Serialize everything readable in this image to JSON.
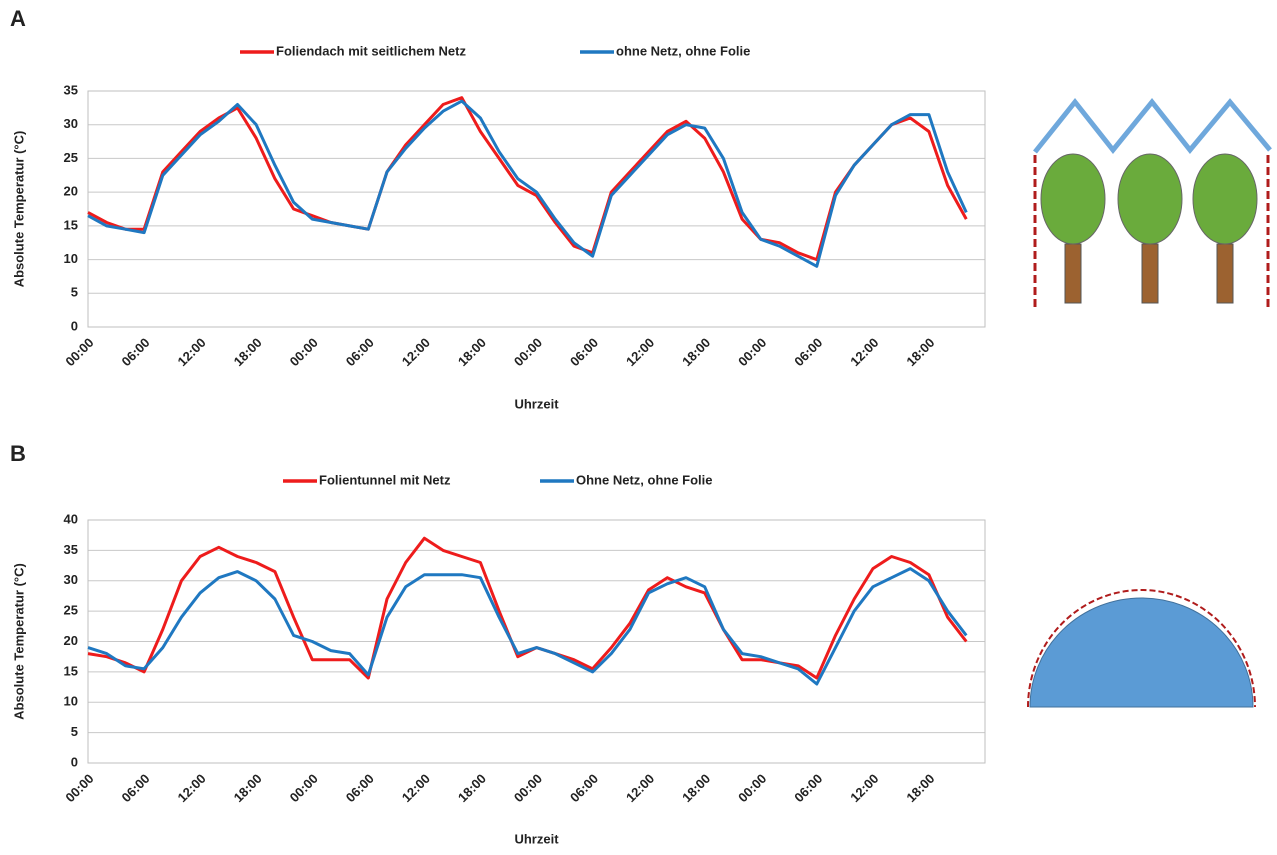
{
  "chart_data": [
    {
      "type": "line",
      "panel_label": "A",
      "y_label": "Absolute Temperatur (°C)",
      "x_label": "Uhrzeit",
      "categories": [
        "00:00",
        null,
        null,
        "06:00",
        null,
        null,
        "12:00",
        null,
        null,
        "18:00",
        null,
        null,
        "00:00",
        null,
        null,
        "06:00",
        null,
        null,
        "12:00",
        null,
        null,
        "18:00",
        null,
        null,
        "00:00",
        null,
        null,
        "06:00",
        null,
        null,
        "12:00",
        null,
        null,
        "18:00",
        null,
        null,
        "00:00",
        null,
        null,
        "06:00",
        null,
        null,
        "12:00",
        null,
        null,
        "18:00",
        null,
        null
      ],
      "series": [
        {
          "name": "Foliendach mit seitlichem Netz",
          "color": "#ee1c1c",
          "values": [
            17,
            15.5,
            14.5,
            14.5,
            23,
            26,
            29,
            31,
            32.5,
            28,
            22,
            17.5,
            16.5,
            15.5,
            15,
            14.5,
            23,
            27,
            30,
            33,
            34,
            29,
            25,
            21,
            19.5,
            15.5,
            12,
            11,
            20,
            23,
            26,
            29,
            30.5,
            28,
            23,
            16,
            13,
            12.5,
            11,
            10,
            20,
            24,
            27,
            30,
            31,
            29,
            21,
            16
          ]
        },
        {
          "name": "ohne Netz, ohne Folie",
          "color": "#1f78c1",
          "values": [
            16.5,
            15,
            14.5,
            14,
            22.5,
            25.5,
            28.5,
            30.5,
            33,
            30,
            24,
            18.5,
            16,
            15.5,
            15,
            14.5,
            23,
            26.5,
            29.5,
            32,
            33.5,
            31,
            26,
            22,
            20,
            16,
            12.5,
            10.5,
            19.5,
            22.5,
            25.5,
            28.5,
            30,
            29.5,
            25,
            17,
            13,
            12,
            10.5,
            9,
            19.5,
            24,
            27,
            30,
            31.5,
            31.5,
            23,
            17
          ]
        }
      ],
      "ylim": [
        0,
        35
      ],
      "yticks": [
        0,
        5,
        10,
        15,
        20,
        25,
        30,
        35
      ],
      "grid": true
    },
    {
      "type": "line",
      "panel_label": "B",
      "y_label": "Absolute Temperatur (°C)",
      "x_label": "Uhrzeit",
      "categories": [
        "00:00",
        null,
        null,
        "06:00",
        null,
        null,
        "12:00",
        null,
        null,
        "18:00",
        null,
        null,
        "00:00",
        null,
        null,
        "06:00",
        null,
        null,
        "12:00",
        null,
        null,
        "18:00",
        null,
        null,
        "00:00",
        null,
        null,
        "06:00",
        null,
        null,
        "12:00",
        null,
        null,
        "18:00",
        null,
        null,
        "00:00",
        null,
        null,
        "06:00",
        null,
        null,
        "12:00",
        null,
        null,
        "18:00",
        null,
        null
      ],
      "series": [
        {
          "name": "Folientunnel mit Netz",
          "color": "#ee1c1c",
          "values": [
            18,
            17.5,
            16.5,
            15,
            22,
            30,
            34,
            35.5,
            34,
            33,
            31.5,
            24,
            17,
            17,
            17,
            14,
            27,
            33,
            37,
            35,
            34,
            33,
            25,
            17.5,
            19,
            18,
            17,
            15.5,
            19,
            23,
            28.5,
            30.5,
            29,
            28,
            22,
            17,
            17,
            16.5,
            16,
            14,
            21,
            27,
            32,
            34,
            33,
            31,
            24,
            20
          ]
        },
        {
          "name": "Ohne Netz, ohne Folie",
          "color": "#1f78c1",
          "values": [
            19,
            18,
            16,
            15.5,
            19,
            24,
            28,
            30.5,
            31.5,
            30,
            27,
            21,
            20,
            18.5,
            18,
            14.5,
            24,
            29,
            31,
            31,
            31,
            30.5,
            24,
            18,
            19,
            18,
            16.5,
            15,
            18,
            22,
            28,
            29.5,
            30.5,
            29,
            22,
            18,
            17.5,
            16.5,
            15.5,
            13,
            19,
            25,
            29,
            30.5,
            32,
            30,
            25,
            21
          ]
        }
      ],
      "ylim": [
        0,
        40
      ],
      "yticks": [
        0,
        5,
        10,
        15,
        20,
        25,
        30,
        35,
        40
      ],
      "grid": true
    }
  ]
}
